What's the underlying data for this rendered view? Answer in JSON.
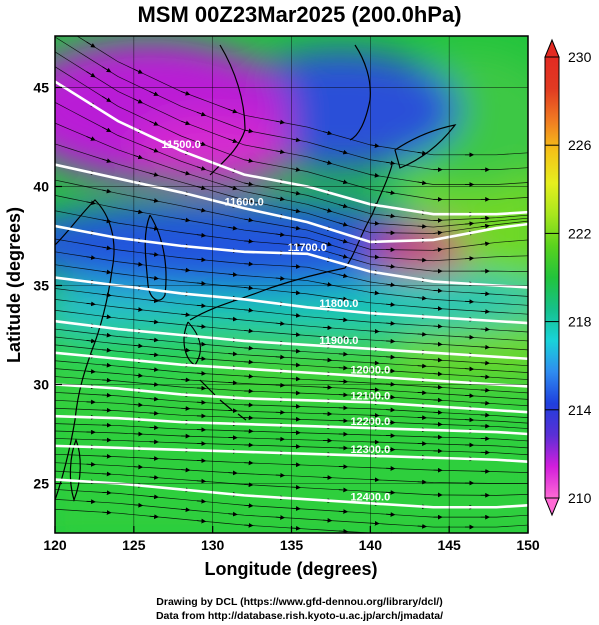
{
  "title": "MSM 00Z23Mar2025 (200.0hPa)",
  "footer": {
    "line1": "Drawing by DCL (https://www.gfd-dennou.org/library/dcl/)",
    "line2": "Data from http://database.rish.kyoto-u.ac.jp/arch/jmadata/"
  },
  "chart_data": {
    "type": "heatmap",
    "title": "MSM 00Z23Mar2025 (200.0hPa)",
    "xlabel": "Longitude (degrees)",
    "ylabel": "Latitude  (degrees)",
    "xlim": [
      120,
      150
    ],
    "ylim": [
      22.5,
      47.6
    ],
    "xticks": [
      "120",
      "125",
      "130",
      "135",
      "140",
      "145",
      "150"
    ],
    "yticks": [
      "25",
      "30",
      "35",
      "40",
      "45"
    ],
    "grid": true,
    "colorbar": {
      "min": 210,
      "max": 230,
      "ticks": [
        "210",
        "214",
        "218",
        "222",
        "226",
        "230"
      ],
      "colors": [
        "#ff6ad5",
        "#d21edc",
        "#5a2fd6",
        "#1f3fdd",
        "#2f8cf0",
        "#19d3d9",
        "#16c08a",
        "#22c43c",
        "#5ad21e",
        "#a8e61e",
        "#e6ee1e",
        "#f5c318",
        "#f07a22",
        "#e13a22",
        "#e22a22"
      ]
    },
    "contours": [
      {
        "label": "11500.0",
        "lon": [
          120,
          124,
          128,
          132,
          136,
          140,
          144,
          148,
          150
        ],
        "lat": [
          45.3,
          43.3,
          41.8,
          40.6,
          40.0,
          39.1,
          38.6,
          38.6,
          38.7
        ]
      },
      {
        "label": "11600.0",
        "lon": [
          120,
          124,
          128,
          132,
          136,
          140,
          144,
          148,
          150
        ],
        "lat": [
          41.1,
          40.4,
          39.7,
          38.9,
          38.2,
          37.2,
          37.3,
          37.9,
          38.1
        ]
      },
      {
        "label": "11700.0",
        "lon": [
          120,
          124,
          128,
          132,
          136,
          140,
          144,
          148,
          150
        ],
        "lat": [
          38.0,
          37.4,
          37.0,
          36.7,
          36.6,
          35.7,
          35.2,
          35.0,
          34.9
        ]
      },
      {
        "label": "11800.0",
        "lon": [
          120,
          124,
          128,
          132,
          136,
          140,
          144,
          148,
          150
        ],
        "lat": [
          35.4,
          35.0,
          34.6,
          34.3,
          33.9,
          33.6,
          33.4,
          33.2,
          33.1
        ]
      },
      {
        "label": "11900.0",
        "lon": [
          120,
          124,
          128,
          132,
          136,
          140,
          144,
          148,
          150
        ],
        "lat": [
          33.2,
          32.8,
          32.5,
          32.2,
          32.0,
          31.8,
          31.6,
          31.4,
          31.3
        ]
      },
      {
        "label": "12000.0",
        "lon": [
          120,
          124,
          128,
          132,
          136,
          140,
          144,
          148,
          150
        ],
        "lat": [
          31.6,
          31.3,
          31.0,
          30.8,
          30.6,
          30.4,
          30.2,
          30.0,
          29.9
        ]
      },
      {
        "label": "12100.0",
        "lon": [
          120,
          124,
          128,
          132,
          136,
          140,
          144,
          148,
          150
        ],
        "lat": [
          30.0,
          29.8,
          29.5,
          29.3,
          29.2,
          29.1,
          28.9,
          28.7,
          28.6
        ]
      },
      {
        "label": "12200.0",
        "lon": [
          120,
          124,
          128,
          132,
          136,
          140,
          144,
          148,
          150
        ],
        "lat": [
          28.4,
          28.3,
          28.1,
          28.0,
          27.9,
          27.8,
          27.7,
          27.6,
          27.5
        ]
      },
      {
        "label": "12300.0",
        "lon": [
          120,
          124,
          128,
          132,
          136,
          140,
          144,
          148,
          150
        ],
        "lat": [
          26.9,
          26.8,
          26.7,
          26.6,
          26.5,
          26.4,
          26.3,
          26.2,
          26.1
        ]
      },
      {
        "label": "12400.0",
        "lon": [
          120,
          124,
          128,
          132,
          136,
          140,
          144,
          148,
          150
        ],
        "lat": [
          25.2,
          25.0,
          24.7,
          24.4,
          24.2,
          24.0,
          23.8,
          23.8,
          23.9
        ]
      }
    ]
  }
}
